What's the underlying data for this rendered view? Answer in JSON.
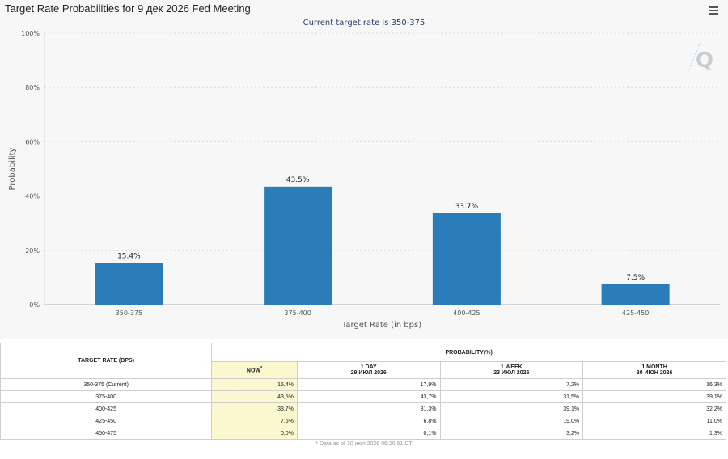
{
  "title": "Target Rate Probabilities for 9 дек 2026 Fed Meeting",
  "chart_data": {
    "type": "bar",
    "subtitle": "Current target rate is 350-375",
    "categories": [
      "350-375",
      "375-400",
      "400-425",
      "425-450"
    ],
    "values": [
      15.4,
      43.5,
      33.7,
      7.5
    ],
    "value_labels": [
      "15.4%",
      "43.5%",
      "33.7%",
      "7.5%"
    ],
    "xlabel": "Target Rate (in bps)",
    "ylabel": "Probability",
    "ylim": [
      0,
      100
    ],
    "yticks": [
      0,
      20,
      40,
      60,
      80,
      100
    ],
    "ytick_labels": [
      "0%",
      "20%",
      "40%",
      "60%",
      "80%",
      "100%"
    ],
    "grid": true,
    "bar_color": "#2a7db8"
  },
  "table": {
    "rate_header": "TARGET RATE (BPS)",
    "prob_header": "PROBABILITY(%)",
    "columns": [
      {
        "label": "NOW",
        "sup": "*",
        "date": ""
      },
      {
        "label": "1 DAY",
        "date": "29 ИЮЛ 2026"
      },
      {
        "label": "1 WEEK",
        "date": "23 ИЮЛ 2026"
      },
      {
        "label": "1 MONTH",
        "date": "30 ИЮН 2026"
      }
    ],
    "rows": [
      {
        "rate": "350-375 (Current)",
        "values": [
          "15,4%",
          "17,9%",
          "7,2%",
          "16,3%"
        ]
      },
      {
        "rate": "375-400",
        "values": [
          "43,5%",
          "43,7%",
          "31,5%",
          "39,1%"
        ]
      },
      {
        "rate": "400-425",
        "values": [
          "33,7%",
          "31,3%",
          "39,1%",
          "32,2%"
        ]
      },
      {
        "rate": "425-450",
        "values": [
          "7,5%",
          "6,8%",
          "19,0%",
          "11,0%"
        ]
      },
      {
        "rate": "450-475",
        "values": [
          "0,0%",
          "0,1%",
          "3,2%",
          "1,3%"
        ]
      }
    ],
    "footnote": "* Data as of 30 июл 2026 06:20:51 CT"
  }
}
